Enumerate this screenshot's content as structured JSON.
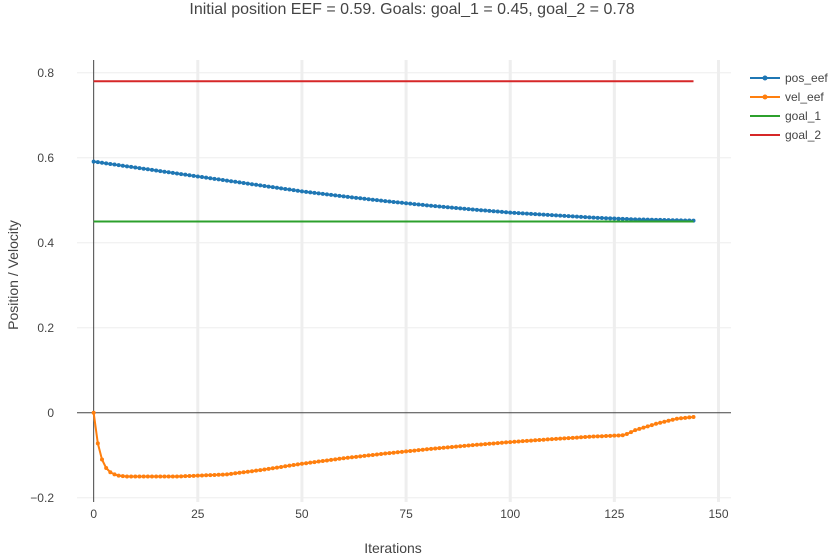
{
  "chart_data": {
    "type": "line",
    "title": "Initial position EEF = 0.59.  Goals: goal_1 = 0.45, goal_2 = 0.78",
    "xlabel": "Iterations",
    "ylabel": "Position / Velocity",
    "xlim": [
      -4,
      153
    ],
    "ylim": [
      -0.21,
      0.83
    ],
    "x_ticks": [
      0,
      25,
      50,
      75,
      100,
      125,
      150
    ],
    "y_ticks": [
      -0.2,
      0,
      0.2,
      0.4,
      0.6,
      0.8
    ],
    "x_tick_labels": [
      "0",
      "25",
      "50",
      "75",
      "100",
      "125",
      "150"
    ],
    "y_tick_labels": [
      "−0.2",
      "0",
      "0.2",
      "0.4",
      "0.6",
      "0.8"
    ],
    "grid": true,
    "legend_position": "top-right",
    "series": [
      {
        "name": "pos_eef",
        "color": "#1f77b4",
        "markers": true,
        "x": [
          0,
          10,
          20,
          30,
          40,
          50,
          60,
          70,
          80,
          90,
          100,
          110,
          120,
          130,
          144
        ],
        "y": [
          0.591,
          0.577,
          0.563,
          0.549,
          0.535,
          0.521,
          0.509,
          0.498,
          0.488,
          0.479,
          0.471,
          0.465,
          0.459,
          0.455,
          0.452
        ]
      },
      {
        "name": "vel_eef",
        "color": "#ff7f0e",
        "markers": true,
        "x": [
          0,
          1,
          2,
          3,
          4,
          5,
          6,
          7,
          8,
          10,
          15,
          20,
          25,
          30,
          32,
          40,
          50,
          60,
          70,
          80,
          90,
          100,
          110,
          120,
          127,
          128,
          130,
          135,
          140,
          144
        ],
        "y": [
          0.0,
          -0.072,
          -0.11,
          -0.13,
          -0.14,
          -0.145,
          -0.148,
          -0.149,
          -0.15,
          -0.15,
          -0.15,
          -0.15,
          -0.148,
          -0.146,
          -0.145,
          -0.135,
          -0.12,
          -0.107,
          -0.096,
          -0.086,
          -0.077,
          -0.069,
          -0.062,
          -0.056,
          -0.053,
          -0.05,
          -0.041,
          -0.026,
          -0.014,
          -0.01
        ]
      },
      {
        "name": "goal_1",
        "color": "#2ca02c",
        "markers": false,
        "x": [
          0,
          144
        ],
        "y": [
          0.45,
          0.45
        ]
      },
      {
        "name": "goal_2",
        "color": "#d62728",
        "markers": false,
        "x": [
          0,
          144
        ],
        "y": [
          0.78,
          0.78
        ]
      }
    ]
  }
}
